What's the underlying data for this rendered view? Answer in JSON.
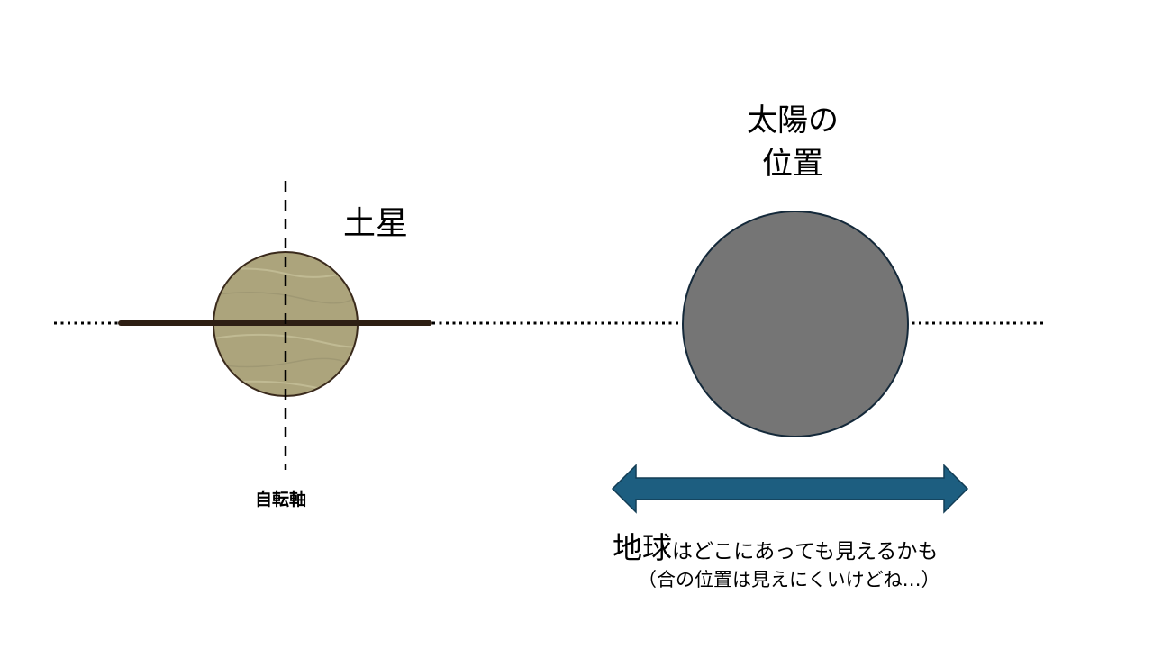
{
  "labels": {
    "saturn": "土星",
    "sun_line1": "太陽の",
    "sun_line2": "位置",
    "axis": "自転軸",
    "earth_emphasis": "地球",
    "earth_rest": "はどこにあっても見えるかも",
    "note": "（合の位置は見えにくいけどね…）"
  },
  "colors": {
    "saturn_fill": "#aca47c",
    "saturn_stroke": "#3a2a1c",
    "ring": "#2e1f14",
    "sun_fill": "#757575",
    "sun_stroke": "#14293a",
    "arrow_fill": "#1d5e80",
    "arrow_stroke": "#123d55"
  }
}
